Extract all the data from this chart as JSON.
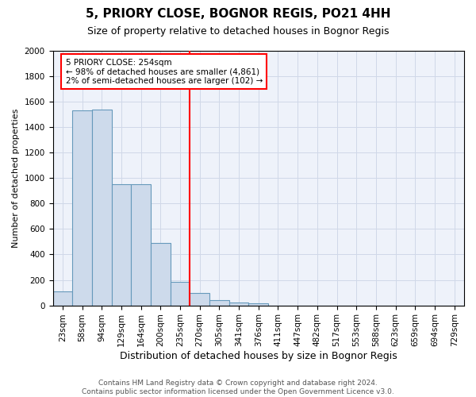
{
  "title1": "5, PRIORY CLOSE, BOGNOR REGIS, PO21 4HH",
  "title2": "Size of property relative to detached houses in Bognor Regis",
  "xlabel": "Distribution of detached houses by size in Bognor Regis",
  "ylabel": "Number of detached properties",
  "footer": "Contains HM Land Registry data © Crown copyright and database right 2024.\nContains public sector information licensed under the Open Government Licence v3.0.",
  "bin_labels": [
    "23sqm",
    "58sqm",
    "94sqm",
    "129sqm",
    "164sqm",
    "200sqm",
    "235sqm",
    "270sqm",
    "305sqm",
    "341sqm",
    "376sqm",
    "411sqm",
    "447sqm",
    "482sqm",
    "517sqm",
    "553sqm",
    "588sqm",
    "623sqm",
    "659sqm",
    "694sqm",
    "729sqm"
  ],
  "bar_values": [
    110,
    1530,
    1540,
    950,
    950,
    490,
    185,
    100,
    40,
    25,
    18,
    0,
    0,
    0,
    0,
    0,
    0,
    0,
    0,
    0,
    0
  ],
  "bar_color": "#cddaeb",
  "bar_edge_color": "#6699bb",
  "vline_x": 7,
  "vline_color": "red",
  "ylim": [
    0,
    2000
  ],
  "yticks": [
    0,
    200,
    400,
    600,
    800,
    1000,
    1200,
    1400,
    1600,
    1800,
    2000
  ],
  "annotation_text": "5 PRIORY CLOSE: 254sqm\n← 98% of detached houses are smaller (4,861)\n2% of semi-detached houses are larger (102) →",
  "grid_color": "#d0d8e8",
  "bg_color": "#eef2fa",
  "title1_fontsize": 11,
  "title2_fontsize": 9,
  "ylabel_fontsize": 8,
  "xlabel_fontsize": 9,
  "footer_fontsize": 6.5,
  "tick_fontsize": 7.5
}
